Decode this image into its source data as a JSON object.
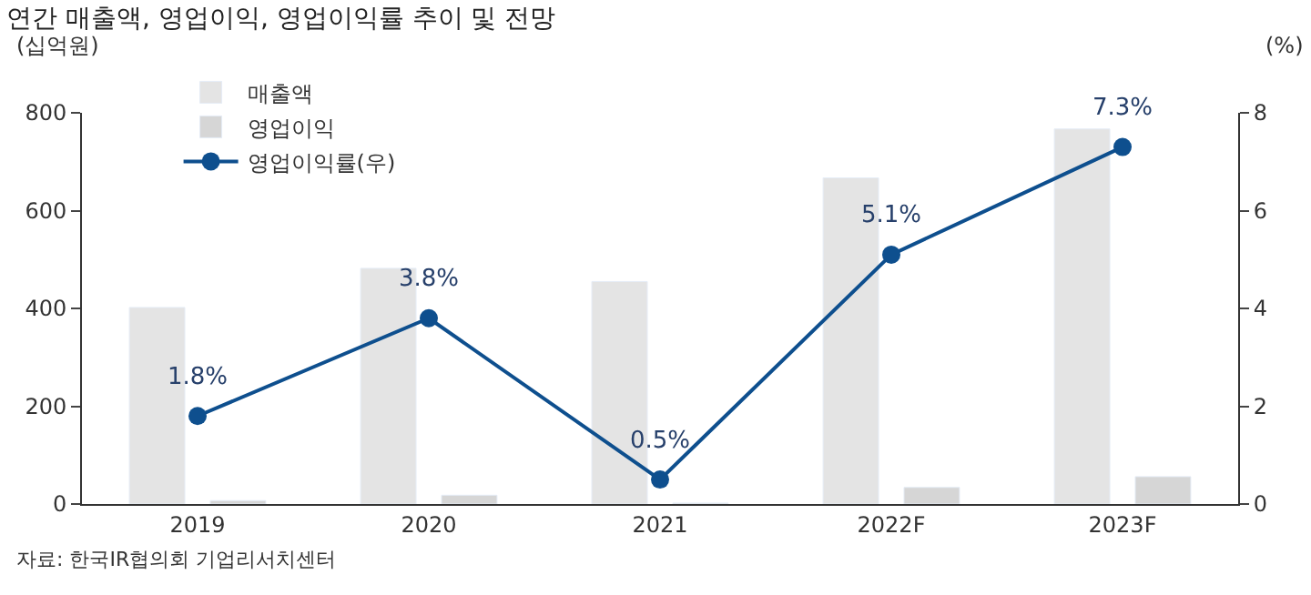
{
  "chart_data": {
    "type": "bar",
    "title": "연간 매출액, 영업이익, 영업이익률 추이 및 전망",
    "categories": [
      "2019",
      "2020",
      "2021",
      "2022F",
      "2023F"
    ],
    "series": [
      {
        "name": "매출액",
        "color": "#e4e4e4",
        "values": [
          402,
          482,
          455,
          667,
          767
        ]
      },
      {
        "name": "영업이익",
        "color": "#d6d6d6",
        "values": [
          7,
          18,
          2,
          34,
          56
        ]
      },
      {
        "name": "영업이익률(우)",
        "type": "line",
        "axis": "y2",
        "color": "#0e4f8e",
        "marker": "circle",
        "values": [
          1.8,
          3.8,
          0.5,
          5.1,
          7.3
        ],
        "value_labels": [
          "1.8%",
          "3.8%",
          "0.5%",
          "5.1%",
          "7.3%"
        ]
      }
    ],
    "ylabel": "(십억원)",
    "y2label": "(%)",
    "ylim": [
      0,
      800
    ],
    "yticks": [
      0,
      200,
      400,
      600,
      800
    ],
    "y2lim": [
      0,
      8
    ],
    "y2ticks": [
      0,
      2,
      4,
      6,
      8
    ],
    "legend": "top left",
    "annotations": [
      "자료: 한국IR협의회 기업리서치센터"
    ]
  }
}
